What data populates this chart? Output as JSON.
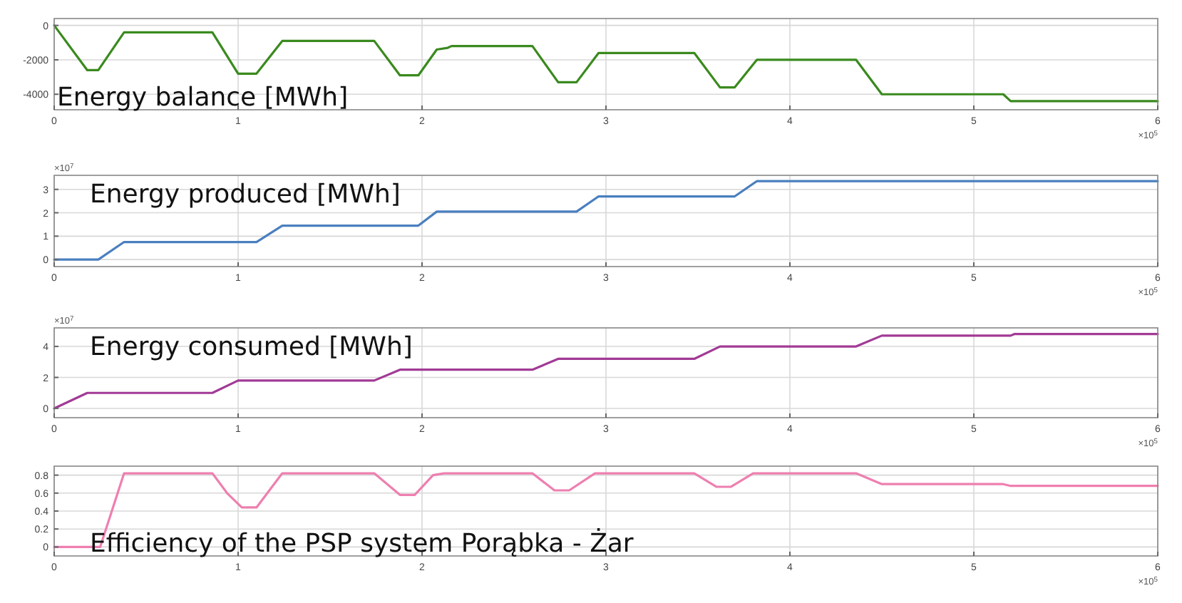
{
  "chart_data": [
    {
      "type": "line",
      "title": "Energy balance [MWh]",
      "x": [
        0,
        0.18,
        0.24,
        0.38,
        0.86,
        1.0,
        1.1,
        1.24,
        1.74,
        1.88,
        1.98,
        2.08,
        2.14,
        2.16,
        2.6,
        2.74,
        2.84,
        2.96,
        3.48,
        3.62,
        3.7,
        3.82,
        4.36,
        4.5,
        5.16,
        5.2,
        6.0
      ],
      "series": [
        {
          "color": "#3a8a1e",
          "values": [
            0,
            -2600,
            -2600,
            -400,
            -400,
            -2800,
            -2800,
            -900,
            -900,
            -2900,
            -2900,
            -1400,
            -1300,
            -1200,
            -1200,
            -3300,
            -3300,
            -1600,
            -1600,
            -3600,
            -3600,
            -2000,
            -2000,
            -4000,
            -4000,
            -4400,
            -4400
          ]
        }
      ],
      "xlim": [
        0,
        6
      ],
      "xticks": [
        0,
        1,
        2,
        3,
        4,
        5,
        6
      ],
      "ylim": [
        -4900,
        400
      ],
      "yticks": [
        -4000,
        -2000,
        0
      ],
      "grid": true,
      "annotations": [
        "×10$^{5}$"
      ]
    },
    {
      "type": "line",
      "title": "Energy produced [MWh]",
      "x": [
        0,
        0.24,
        0.38,
        1.1,
        1.24,
        1.98,
        2.08,
        2.84,
        2.96,
        3.7,
        3.82,
        6.0
      ],
      "series": [
        {
          "color": "#4a7fbf",
          "values": [
            0,
            0,
            0.75,
            0.75,
            1.45,
            1.45,
            2.05,
            2.05,
            2.7,
            2.7,
            3.35,
            3.35
          ]
        }
      ],
      "xlim": [
        0,
        6
      ],
      "xticks": [
        0,
        1,
        2,
        3,
        4,
        5,
        6
      ],
      "ylim": [
        -0.3,
        3.6
      ],
      "yticks": [
        0,
        1,
        2,
        3
      ],
      "grid": true,
      "annotations": [
        "×10$^{7}$",
        "×10$^{5}$"
      ]
    },
    {
      "type": "line",
      "title": "Energy consumed [MWh]",
      "x": [
        0,
        0.18,
        0.86,
        1.0,
        1.74,
        1.88,
        2.6,
        2.74,
        3.48,
        3.62,
        4.36,
        4.5,
        5.2,
        5.22,
        6.0
      ],
      "series": [
        {
          "color": "#a23a95",
          "values": [
            0,
            1,
            1,
            1.8,
            1.8,
            2.5,
            2.5,
            3.2,
            3.2,
            4,
            4,
            4.7,
            4.7,
            4.8,
            4.8
          ]
        }
      ],
      "xlim": [
        0,
        6
      ],
      "xticks": [
        0,
        1,
        2,
        3,
        4,
        5,
        6
      ],
      "ylim": [
        -0.6,
        5.2
      ],
      "yticks": [
        0,
        2,
        4
      ],
      "grid": true,
      "annotations": [
        "×10$^{7}$",
        "×10$^{5}$"
      ]
    },
    {
      "type": "line",
      "title": "Efficiency of the PSP system Porąbka - Żar",
      "x": [
        0,
        0.25,
        0.38,
        0.86,
        0.94,
        1.02,
        1.1,
        1.24,
        1.74,
        1.88,
        1.96,
        2.06,
        2.12,
        2.6,
        2.72,
        2.8,
        2.94,
        3.48,
        3.6,
        3.68,
        3.8,
        4.36,
        4.5,
        5.16,
        5.2,
        6.0
      ],
      "series": [
        {
          "color": "#ee7fb0",
          "values": [
            0,
            0,
            0.82,
            0.82,
            0.6,
            0.44,
            0.44,
            0.82,
            0.82,
            0.58,
            0.58,
            0.8,
            0.82,
            0.82,
            0.63,
            0.63,
            0.82,
            0.82,
            0.67,
            0.67,
            0.82,
            0.82,
            0.7,
            0.7,
            0.68,
            0.68
          ]
        }
      ],
      "xlim": [
        0,
        6
      ],
      "xticks": [
        0,
        1,
        2,
        3,
        4,
        5,
        6
      ],
      "ylim": [
        -0.1,
        0.9
      ],
      "yticks": [
        0,
        0.2,
        0.4,
        0.6,
        0.8
      ],
      "grid": true,
      "annotations": [
        "×10$^{5}$"
      ]
    }
  ]
}
